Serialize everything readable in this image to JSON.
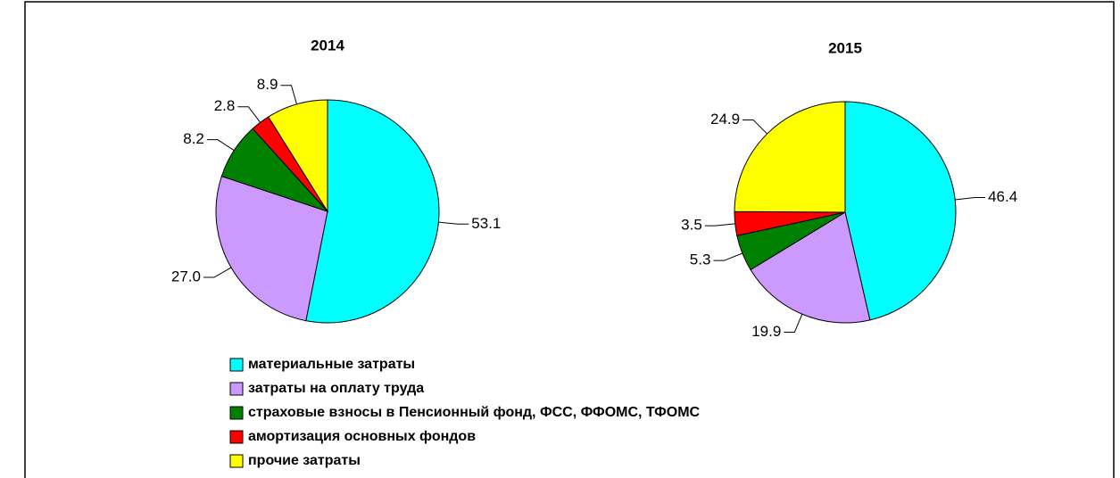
{
  "chart_data": [
    {
      "type": "pie",
      "title": "2014",
      "values": [
        53.1,
        27.0,
        8.2,
        2.8,
        8.9
      ],
      "value_labels": [
        "53.1",
        "27.0",
        "8.2",
        "2.8",
        "8.9"
      ]
    },
    {
      "type": "pie",
      "title": "2015",
      "values": [
        46.4,
        19.9,
        5.3,
        3.5,
        24.9
      ],
      "value_labels": [
        "46.4",
        "19.9",
        "5.3",
        "3.5",
        "24.9"
      ]
    }
  ],
  "legend": {
    "labels": [
      "материальные затраты",
      "затраты на оплату труда",
      "страховые взносы в Пенсионный фонд, ФСС, ФФОМС, ТФОМС",
      "амортизация основных фондов",
      "прочие затраты"
    ],
    "colors": [
      "#00ffff",
      "#cc99ff",
      "#008000",
      "#ff0000",
      "#ffff00"
    ]
  }
}
